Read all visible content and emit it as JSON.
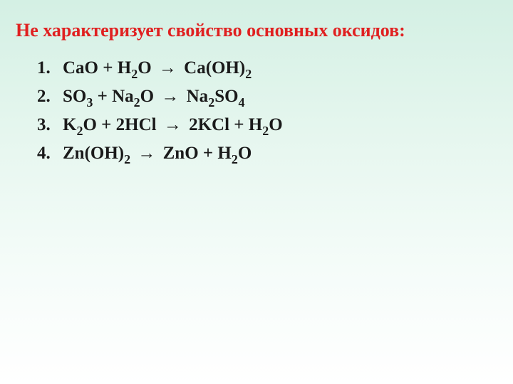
{
  "title": "Не характеризует свойство основных оксидов:",
  "title_color": "#e02020",
  "title_fontsize": 26,
  "item_fontsize": 25,
  "item_color": "#1a1a1a",
  "background_gradient": [
    "#d4f0e4",
    "#e8f7f0",
    "#f5fcf9",
    "#ffffff"
  ],
  "equations": [
    {
      "number": "1.",
      "tokens": [
        {
          "t": "CaO + H"
        },
        {
          "t": "2",
          "sub": true
        },
        {
          "t": "O "
        },
        {
          "t": "→",
          "arrow": true
        },
        {
          "t": " Ca(OH)"
        },
        {
          "t": "2",
          "sub": true
        }
      ]
    },
    {
      "number": "2.",
      "tokens": [
        {
          "t": "SO"
        },
        {
          "t": "3",
          "sub": true
        },
        {
          "t": " + Na"
        },
        {
          "t": "2",
          "sub": true
        },
        {
          "t": "O "
        },
        {
          "t": "→",
          "arrow": true
        },
        {
          "t": " Na"
        },
        {
          "t": "2",
          "sub": true
        },
        {
          "t": "SO"
        },
        {
          "t": "4",
          "sub": true
        }
      ]
    },
    {
      "number": "3.",
      "tokens": [
        {
          "t": "K"
        },
        {
          "t": "2",
          "sub": true
        },
        {
          "t": "O + 2HCl "
        },
        {
          "t": "→",
          "arrow": true
        },
        {
          "t": " 2KCl + H"
        },
        {
          "t": "2",
          "sub": true
        },
        {
          "t": "O"
        }
      ]
    },
    {
      "number": "4.",
      "tokens": [
        {
          "t": "Zn(OH)"
        },
        {
          "t": "2",
          "sub": true
        },
        {
          "t": " "
        },
        {
          "t": "→",
          "arrow": true
        },
        {
          "t": " ZnO + H"
        },
        {
          "t": "2",
          "sub": true
        },
        {
          "t": "O"
        }
      ]
    }
  ]
}
